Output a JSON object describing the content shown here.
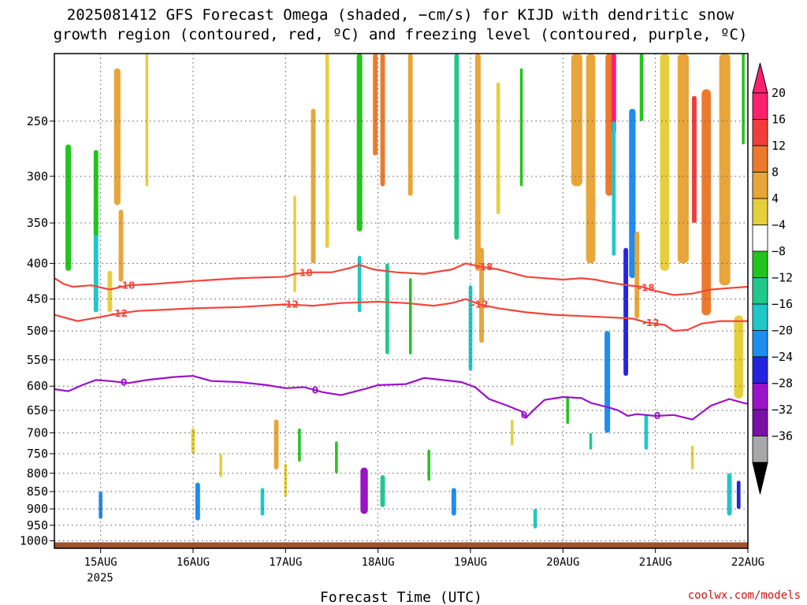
{
  "chart_data": {
    "type": "heatmap",
    "title_lines": [
      "2025081412 GFS Forecast Omega (shaded, −cm/s) for KIJD with dendritic snow",
      "growth region (contoured, red, ºC) and freezing level (contoured, purple, ºC)"
    ],
    "xlabel": "Forecast Time (UTC)",
    "credit": "coolwx.com/models",
    "year_label": "2025",
    "x_ticks": [
      "15AUG",
      "16AUG",
      "17AUG",
      "18AUG",
      "19AUG",
      "20AUG",
      "21AUG",
      "22AUG"
    ],
    "x_range_days": [
      14.5,
      22.0
    ],
    "y_ticks": [
      250,
      300,
      350,
      400,
      450,
      500,
      550,
      600,
      650,
      700,
      750,
      800,
      850,
      900,
      950,
      1000
    ],
    "y_range_hpa": [
      200,
      1025
    ],
    "grid": true,
    "colorbar": {
      "labels": [
        "20",
        "16",
        "12",
        "8",
        "4",
        "−4",
        "−8",
        "−12",
        "−16",
        "−20",
        "−24",
        "−28",
        "−32",
        "−36"
      ],
      "colors": [
        "#ff1f6c",
        "#f23c3c",
        "#ec7a2c",
        "#e8a63a",
        "#e6cf3c",
        "#ece340",
        "#ffffff",
        "#22c51c",
        "#22c88a",
        "#1fc8c8",
        "#1f8cf0",
        "#2424e0",
        "#9a13c8",
        "#7a10a8",
        "#a8a8a8",
        "#000000"
      ]
    },
    "omega_patches": [
      {
        "day": 14.65,
        "p": 340,
        "dd": 0.06,
        "dp": 140,
        "v": -6
      },
      {
        "day": 14.95,
        "p": 400,
        "dd": 0.05,
        "dp": 140,
        "v": -14
      },
      {
        "day": 14.95,
        "p": 320,
        "dd": 0.05,
        "dp": 90,
        "v": -6
      },
      {
        "day": 15.0,
        "p": 890,
        "dd": 0.04,
        "dp": 80,
        "v": -16
      },
      {
        "day": 15.18,
        "p": 270,
        "dd": 0.07,
        "dp": 120,
        "v": 10
      },
      {
        "day": 15.22,
        "p": 380,
        "dd": 0.05,
        "dp": 90,
        "v": 8
      },
      {
        "day": 15.1,
        "p": 440,
        "dd": 0.05,
        "dp": 60,
        "v": 6
      },
      {
        "day": 16.05,
        "p": 880,
        "dd": 0.05,
        "dp": 110,
        "v": -16
      },
      {
        "day": 16.0,
        "p": 720,
        "dd": 0.04,
        "dp": 60,
        "v": 5
      },
      {
        "day": 16.75,
        "p": 880,
        "dd": 0.04,
        "dp": 80,
        "v": -12
      },
      {
        "day": 16.9,
        "p": 730,
        "dd": 0.05,
        "dp": 120,
        "v": 8
      },
      {
        "day": 17.1,
        "p": 380,
        "dd": 0.03,
        "dp": 120,
        "v": 5
      },
      {
        "day": 17.15,
        "p": 730,
        "dd": 0.03,
        "dp": 80,
        "v": -6
      },
      {
        "day": 17.3,
        "p": 320,
        "dd": 0.05,
        "dp": 160,
        "v": 8
      },
      {
        "day": 17.45,
        "p": 290,
        "dd": 0.04,
        "dp": 180,
        "v": 6
      },
      {
        "day": 17.85,
        "p": 850,
        "dd": 0.08,
        "dp": 130,
        "v": -24
      },
      {
        "day": 17.8,
        "p": 260,
        "dd": 0.06,
        "dp": 200,
        "v": -6
      },
      {
        "day": 17.8,
        "p": 430,
        "dd": 0.04,
        "dp": 80,
        "v": -14
      },
      {
        "day": 17.97,
        "p": 200,
        "dd": 0.05,
        "dp": 160,
        "v": 14
      },
      {
        "day": 18.05,
        "p": 230,
        "dd": 0.05,
        "dp": 160,
        "v": 12
      },
      {
        "day": 18.1,
        "p": 470,
        "dd": 0.04,
        "dp": 140,
        "v": -8
      },
      {
        "day": 18.05,
        "p": 850,
        "dd": 0.05,
        "dp": 90,
        "v": -8
      },
      {
        "day": 18.35,
        "p": 220,
        "dd": 0.05,
        "dp": 200,
        "v": 8
      },
      {
        "day": 18.35,
        "p": 480,
        "dd": 0.03,
        "dp": 120,
        "v": -6
      },
      {
        "day": 18.82,
        "p": 880,
        "dd": 0.05,
        "dp": 80,
        "v": -18
      },
      {
        "day": 18.85,
        "p": 270,
        "dd": 0.05,
        "dp": 200,
        "v": -8
      },
      {
        "day": 19.0,
        "p": 500,
        "dd": 0.04,
        "dp": 140,
        "v": -14
      },
      {
        "day": 19.08,
        "p": 300,
        "dd": 0.06,
        "dp": 220,
        "v": 11
      },
      {
        "day": 19.12,
        "p": 450,
        "dd": 0.05,
        "dp": 140,
        "v": 9
      },
      {
        "day": 19.3,
        "p": 280,
        "dd": 0.04,
        "dp": 120,
        "v": 6
      },
      {
        "day": 19.55,
        "p": 260,
        "dd": 0.03,
        "dp": 100,
        "v": -6
      },
      {
        "day": 19.7,
        "p": 930,
        "dd": 0.04,
        "dp": 60,
        "v": -12
      },
      {
        "day": 20.15,
        "p": 220,
        "dd": 0.12,
        "dp": 180,
        "v": 10
      },
      {
        "day": 20.3,
        "p": 300,
        "dd": 0.1,
        "dp": 200,
        "v": 8
      },
      {
        "day": 20.5,
        "p": 240,
        "dd": 0.08,
        "dp": 160,
        "v": 14
      },
      {
        "day": 20.48,
        "p": 600,
        "dd": 0.06,
        "dp": 200,
        "v": -16
      },
      {
        "day": 20.55,
        "p": 220,
        "dd": 0.05,
        "dp": 80,
        "v": 20
      },
      {
        "day": 20.55,
        "p": 320,
        "dd": 0.04,
        "dp": 140,
        "v": -14
      },
      {
        "day": 20.68,
        "p": 480,
        "dd": 0.05,
        "dp": 200,
        "v": -22
      },
      {
        "day": 20.75,
        "p": 330,
        "dd": 0.07,
        "dp": 180,
        "v": -18
      },
      {
        "day": 20.8,
        "p": 420,
        "dd": 0.05,
        "dp": 120,
        "v": 10
      },
      {
        "day": 20.85,
        "p": 220,
        "dd": 0.04,
        "dp": 60,
        "v": -6
      },
      {
        "day": 20.9,
        "p": 700,
        "dd": 0.04,
        "dp": 80,
        "v": -14
      },
      {
        "day": 21.1,
        "p": 300,
        "dd": 0.1,
        "dp": 220,
        "v": 6
      },
      {
        "day": 21.3,
        "p": 280,
        "dd": 0.12,
        "dp": 240,
        "v": 10
      },
      {
        "day": 21.42,
        "p": 290,
        "dd": 0.05,
        "dp": 120,
        "v": 18
      },
      {
        "day": 21.55,
        "p": 350,
        "dd": 0.1,
        "dp": 250,
        "v": 12
      },
      {
        "day": 21.75,
        "p": 300,
        "dd": 0.12,
        "dp": 260,
        "v": 8
      },
      {
        "day": 21.9,
        "p": 550,
        "dd": 0.1,
        "dp": 150,
        "v": 5
      },
      {
        "day": 21.8,
        "p": 860,
        "dd": 0.05,
        "dp": 120,
        "v": -14
      },
      {
        "day": 21.9,
        "p": 860,
        "dd": 0.04,
        "dp": 80,
        "v": -20
      },
      {
        "day": 21.95,
        "p": 230,
        "dd": 0.03,
        "dp": 80,
        "v": -6
      },
      {
        "day": 15.5,
        "p": 250,
        "dd": 0.03,
        "dp": 120,
        "v": 5
      },
      {
        "day": 16.3,
        "p": 780,
        "dd": 0.03,
        "dp": 60,
        "v": 6
      },
      {
        "day": 17.0,
        "p": 820,
        "dd": 0.03,
        "dp": 90,
        "v": 6
      },
      {
        "day": 17.55,
        "p": 760,
        "dd": 0.03,
        "dp": 80,
        "v": -6
      },
      {
        "day": 18.55,
        "p": 780,
        "dd": 0.03,
        "dp": 80,
        "v": -6
      },
      {
        "day": 19.45,
        "p": 700,
        "dd": 0.03,
        "dp": 60,
        "v": 6
      },
      {
        "day": 20.05,
        "p": 650,
        "dd": 0.03,
        "dp": 60,
        "v": -6
      },
      {
        "day": 20.3,
        "p": 720,
        "dd": 0.03,
        "dp": 40,
        "v": -8
      },
      {
        "day": 21.4,
        "p": 760,
        "dd": 0.03,
        "dp": 60,
        "v": 5
      }
    ],
    "contours": {
      "dgz_minus18": {
        "label": "-18",
        "color": "#f2453a",
        "points": [
          [
            14.5,
            420
          ],
          [
            14.6,
            428
          ],
          [
            14.7,
            432
          ],
          [
            14.9,
            430
          ],
          [
            15.1,
            436
          ],
          [
            15.3,
            430
          ],
          [
            15.6,
            428
          ],
          [
            16.0,
            424
          ],
          [
            16.5,
            420
          ],
          [
            17.0,
            418
          ],
          [
            17.1,
            414
          ],
          [
            17.3,
            412
          ],
          [
            17.5,
            412
          ],
          [
            17.7,
            406
          ],
          [
            17.8,
            402
          ],
          [
            17.95,
            408
          ],
          [
            18.2,
            412
          ],
          [
            18.5,
            414
          ],
          [
            18.8,
            408
          ],
          [
            18.95,
            400
          ],
          [
            19.1,
            404
          ],
          [
            19.3,
            408
          ],
          [
            19.6,
            418
          ],
          [
            20.0,
            422
          ],
          [
            20.2,
            420
          ],
          [
            20.35,
            422
          ],
          [
            20.5,
            426
          ],
          [
            20.7,
            430
          ],
          [
            20.85,
            432
          ],
          [
            21.0,
            438
          ],
          [
            21.2,
            444
          ],
          [
            21.4,
            442
          ],
          [
            21.6,
            436
          ],
          [
            21.8,
            434
          ],
          [
            22.0,
            432
          ]
        ],
        "label_days": [
          15.28,
          17.2,
          19.15,
          20.9
        ]
      },
      "dgz_minus12": {
        "label": "-12",
        "color": "#f2453a",
        "points": [
          [
            14.5,
            474
          ],
          [
            14.6,
            478
          ],
          [
            14.75,
            484
          ],
          [
            14.9,
            480
          ],
          [
            15.05,
            476
          ],
          [
            15.2,
            472
          ],
          [
            15.4,
            468
          ],
          [
            15.7,
            466
          ],
          [
            16.0,
            464
          ],
          [
            16.5,
            462
          ],
          [
            17.0,
            458
          ],
          [
            17.3,
            460
          ],
          [
            17.6,
            456
          ],
          [
            18.0,
            454
          ],
          [
            18.3,
            456
          ],
          [
            18.6,
            460
          ],
          [
            18.8,
            456
          ],
          [
            18.95,
            450
          ],
          [
            19.1,
            458
          ],
          [
            19.3,
            464
          ],
          [
            19.6,
            470
          ],
          [
            19.9,
            474
          ],
          [
            20.2,
            476
          ],
          [
            20.5,
            478
          ],
          [
            20.75,
            480
          ],
          [
            20.9,
            486
          ],
          [
            21.1,
            490
          ],
          [
            21.2,
            500
          ],
          [
            21.35,
            498
          ],
          [
            21.5,
            488
          ],
          [
            21.7,
            484
          ],
          [
            22.0,
            484
          ]
        ],
        "label_days": [
          15.2,
          17.05,
          19.1,
          20.95
        ]
      },
      "freezing_0": {
        "label": "0",
        "color": "#9a13c8",
        "points": [
          [
            14.5,
            606
          ],
          [
            14.65,
            610
          ],
          [
            14.8,
            598
          ],
          [
            14.95,
            588
          ],
          [
            15.1,
            590
          ],
          [
            15.3,
            594
          ],
          [
            15.5,
            588
          ],
          [
            15.8,
            582
          ],
          [
            16.0,
            580
          ],
          [
            16.2,
            590
          ],
          [
            16.5,
            592
          ],
          [
            16.8,
            598
          ],
          [
            17.0,
            604
          ],
          [
            17.2,
            602
          ],
          [
            17.4,
            612
          ],
          [
            17.6,
            618
          ],
          [
            17.85,
            606
          ],
          [
            18.0,
            598
          ],
          [
            18.3,
            596
          ],
          [
            18.5,
            584
          ],
          [
            18.7,
            588
          ],
          [
            18.9,
            592
          ],
          [
            19.05,
            602
          ],
          [
            19.2,
            626
          ],
          [
            19.4,
            640
          ],
          [
            19.55,
            652
          ],
          [
            19.6,
            666
          ],
          [
            19.7,
            646
          ],
          [
            19.8,
            628
          ],
          [
            20.0,
            622
          ],
          [
            20.2,
            624
          ],
          [
            20.3,
            634
          ],
          [
            20.5,
            644
          ],
          [
            20.6,
            650
          ],
          [
            20.7,
            662
          ],
          [
            20.8,
            658
          ],
          [
            21.0,
            662
          ],
          [
            21.2,
            660
          ],
          [
            21.4,
            670
          ],
          [
            21.6,
            640
          ],
          [
            21.8,
            626
          ],
          [
            21.95,
            634
          ],
          [
            22.0,
            636
          ]
        ],
        "label_days": [
          15.25,
          17.32,
          19.58,
          21.02
        ]
      }
    },
    "ground_hpa": 1005
  }
}
